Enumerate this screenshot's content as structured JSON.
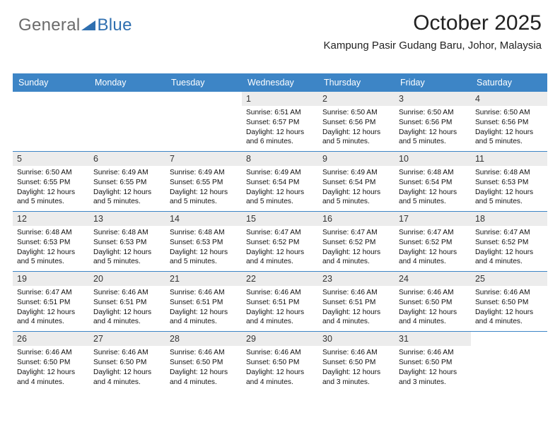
{
  "logo": {
    "word1": "General",
    "word2": "Blue",
    "triangle_color": "#2f6fb0"
  },
  "title": "October 2025",
  "subtitle": "Kampung Pasir Gudang Baru, Johor, Malaysia",
  "header_bg": "#3d85c6",
  "text_color": "#111111",
  "daynum_bg": "#ececec",
  "page_bg": "#ffffff",
  "day_names": [
    "Sunday",
    "Monday",
    "Tuesday",
    "Wednesday",
    "Thursday",
    "Friday",
    "Saturday"
  ],
  "weeks": [
    [
      {
        "num": "",
        "sunrise": "",
        "sunset": "",
        "daylight": ""
      },
      {
        "num": "",
        "sunrise": "",
        "sunset": "",
        "daylight": ""
      },
      {
        "num": "",
        "sunrise": "",
        "sunset": "",
        "daylight": ""
      },
      {
        "num": "1",
        "sunrise": "Sunrise: 6:51 AM",
        "sunset": "Sunset: 6:57 PM",
        "daylight": "Daylight: 12 hours and 6 minutes."
      },
      {
        "num": "2",
        "sunrise": "Sunrise: 6:50 AM",
        "sunset": "Sunset: 6:56 PM",
        "daylight": "Daylight: 12 hours and 5 minutes."
      },
      {
        "num": "3",
        "sunrise": "Sunrise: 6:50 AM",
        "sunset": "Sunset: 6:56 PM",
        "daylight": "Daylight: 12 hours and 5 minutes."
      },
      {
        "num": "4",
        "sunrise": "Sunrise: 6:50 AM",
        "sunset": "Sunset: 6:56 PM",
        "daylight": "Daylight: 12 hours and 5 minutes."
      }
    ],
    [
      {
        "num": "5",
        "sunrise": "Sunrise: 6:50 AM",
        "sunset": "Sunset: 6:55 PM",
        "daylight": "Daylight: 12 hours and 5 minutes."
      },
      {
        "num": "6",
        "sunrise": "Sunrise: 6:49 AM",
        "sunset": "Sunset: 6:55 PM",
        "daylight": "Daylight: 12 hours and 5 minutes."
      },
      {
        "num": "7",
        "sunrise": "Sunrise: 6:49 AM",
        "sunset": "Sunset: 6:55 PM",
        "daylight": "Daylight: 12 hours and 5 minutes."
      },
      {
        "num": "8",
        "sunrise": "Sunrise: 6:49 AM",
        "sunset": "Sunset: 6:54 PM",
        "daylight": "Daylight: 12 hours and 5 minutes."
      },
      {
        "num": "9",
        "sunrise": "Sunrise: 6:49 AM",
        "sunset": "Sunset: 6:54 PM",
        "daylight": "Daylight: 12 hours and 5 minutes."
      },
      {
        "num": "10",
        "sunrise": "Sunrise: 6:48 AM",
        "sunset": "Sunset: 6:54 PM",
        "daylight": "Daylight: 12 hours and 5 minutes."
      },
      {
        "num": "11",
        "sunrise": "Sunrise: 6:48 AM",
        "sunset": "Sunset: 6:53 PM",
        "daylight": "Daylight: 12 hours and 5 minutes."
      }
    ],
    [
      {
        "num": "12",
        "sunrise": "Sunrise: 6:48 AM",
        "sunset": "Sunset: 6:53 PM",
        "daylight": "Daylight: 12 hours and 5 minutes."
      },
      {
        "num": "13",
        "sunrise": "Sunrise: 6:48 AM",
        "sunset": "Sunset: 6:53 PM",
        "daylight": "Daylight: 12 hours and 5 minutes."
      },
      {
        "num": "14",
        "sunrise": "Sunrise: 6:48 AM",
        "sunset": "Sunset: 6:53 PM",
        "daylight": "Daylight: 12 hours and 5 minutes."
      },
      {
        "num": "15",
        "sunrise": "Sunrise: 6:47 AM",
        "sunset": "Sunset: 6:52 PM",
        "daylight": "Daylight: 12 hours and 4 minutes."
      },
      {
        "num": "16",
        "sunrise": "Sunrise: 6:47 AM",
        "sunset": "Sunset: 6:52 PM",
        "daylight": "Daylight: 12 hours and 4 minutes."
      },
      {
        "num": "17",
        "sunrise": "Sunrise: 6:47 AM",
        "sunset": "Sunset: 6:52 PM",
        "daylight": "Daylight: 12 hours and 4 minutes."
      },
      {
        "num": "18",
        "sunrise": "Sunrise: 6:47 AM",
        "sunset": "Sunset: 6:52 PM",
        "daylight": "Daylight: 12 hours and 4 minutes."
      }
    ],
    [
      {
        "num": "19",
        "sunrise": "Sunrise: 6:47 AM",
        "sunset": "Sunset: 6:51 PM",
        "daylight": "Daylight: 12 hours and 4 minutes."
      },
      {
        "num": "20",
        "sunrise": "Sunrise: 6:46 AM",
        "sunset": "Sunset: 6:51 PM",
        "daylight": "Daylight: 12 hours and 4 minutes."
      },
      {
        "num": "21",
        "sunrise": "Sunrise: 6:46 AM",
        "sunset": "Sunset: 6:51 PM",
        "daylight": "Daylight: 12 hours and 4 minutes."
      },
      {
        "num": "22",
        "sunrise": "Sunrise: 6:46 AM",
        "sunset": "Sunset: 6:51 PM",
        "daylight": "Daylight: 12 hours and 4 minutes."
      },
      {
        "num": "23",
        "sunrise": "Sunrise: 6:46 AM",
        "sunset": "Sunset: 6:51 PM",
        "daylight": "Daylight: 12 hours and 4 minutes."
      },
      {
        "num": "24",
        "sunrise": "Sunrise: 6:46 AM",
        "sunset": "Sunset: 6:50 PM",
        "daylight": "Daylight: 12 hours and 4 minutes."
      },
      {
        "num": "25",
        "sunrise": "Sunrise: 6:46 AM",
        "sunset": "Sunset: 6:50 PM",
        "daylight": "Daylight: 12 hours and 4 minutes."
      }
    ],
    [
      {
        "num": "26",
        "sunrise": "Sunrise: 6:46 AM",
        "sunset": "Sunset: 6:50 PM",
        "daylight": "Daylight: 12 hours and 4 minutes."
      },
      {
        "num": "27",
        "sunrise": "Sunrise: 6:46 AM",
        "sunset": "Sunset: 6:50 PM",
        "daylight": "Daylight: 12 hours and 4 minutes."
      },
      {
        "num": "28",
        "sunrise": "Sunrise: 6:46 AM",
        "sunset": "Sunset: 6:50 PM",
        "daylight": "Daylight: 12 hours and 4 minutes."
      },
      {
        "num": "29",
        "sunrise": "Sunrise: 6:46 AM",
        "sunset": "Sunset: 6:50 PM",
        "daylight": "Daylight: 12 hours and 4 minutes."
      },
      {
        "num": "30",
        "sunrise": "Sunrise: 6:46 AM",
        "sunset": "Sunset: 6:50 PM",
        "daylight": "Daylight: 12 hours and 3 minutes."
      },
      {
        "num": "31",
        "sunrise": "Sunrise: 6:46 AM",
        "sunset": "Sunset: 6:50 PM",
        "daylight": "Daylight: 12 hours and 3 minutes."
      },
      {
        "num": "",
        "sunrise": "",
        "sunset": "",
        "daylight": ""
      }
    ]
  ]
}
